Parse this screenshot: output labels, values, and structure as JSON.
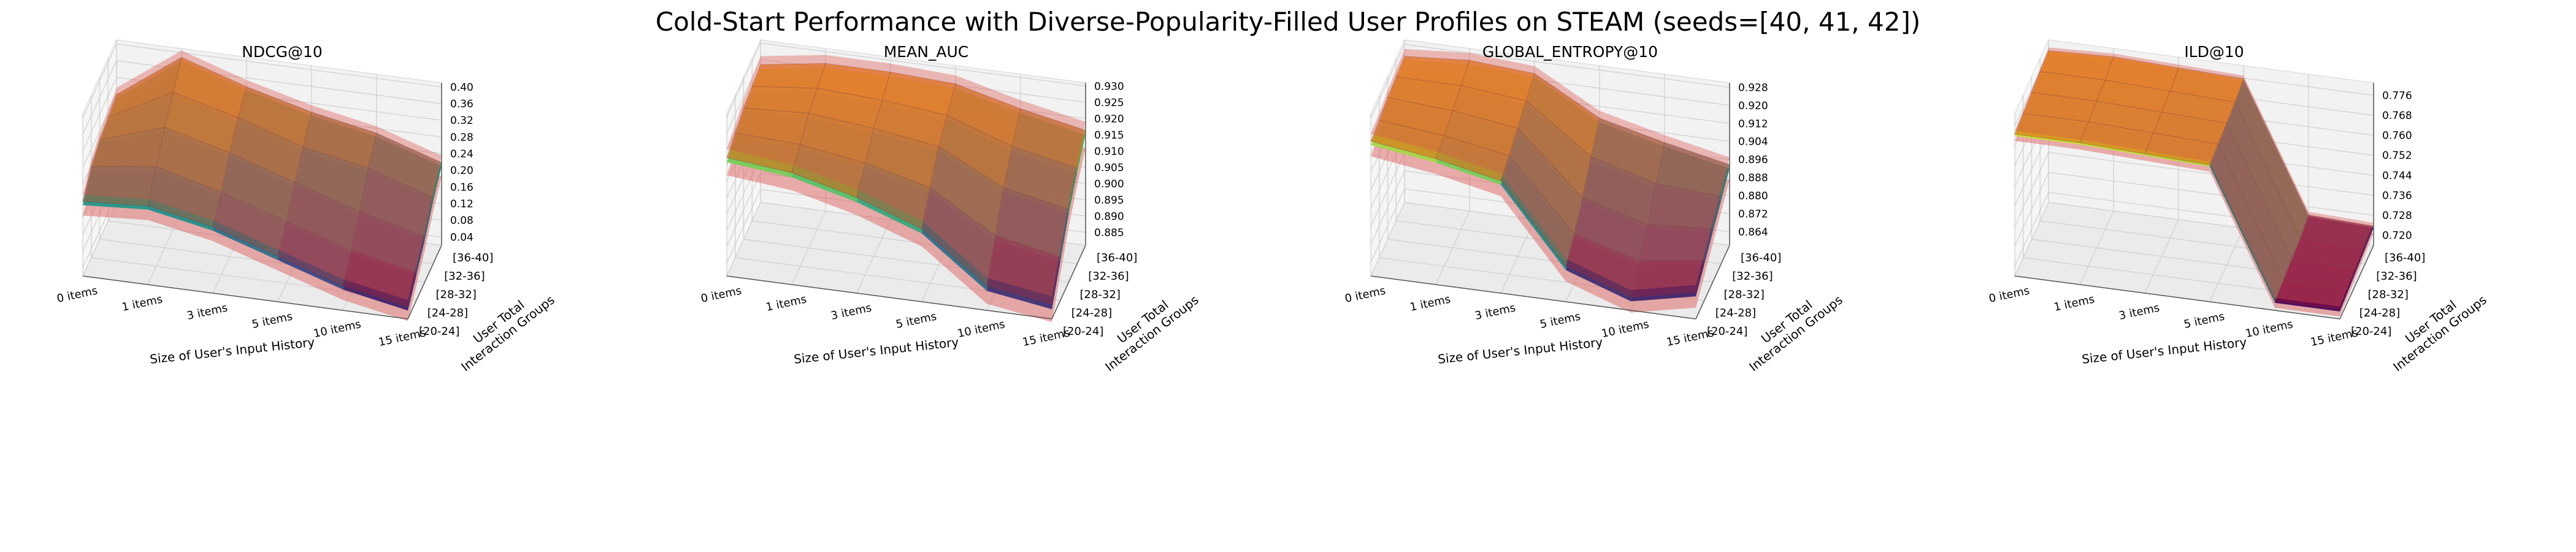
{
  "figure": {
    "title": "Cold-Start Performance with Diverse-Popularity-Filled User Profiles on STEAM (seeds=[40, 41, 42])"
  },
  "chart_data": [
    {
      "type": "surface3d",
      "title": "NDCG@10",
      "xlabel": "Size of User's Input History",
      "ylabel": "User Total Interaction Groups",
      "x_categories": [
        "0 items",
        "1 items",
        "3 items",
        "5 items",
        "10 items",
        "15 items"
      ],
      "y_categories": [
        "[20-24]",
        "[24-28]",
        "[28-32]",
        "[32-36]",
        "[36-40]"
      ],
      "z_ticks": [
        "0.04",
        "0.08",
        "0.12",
        "0.16",
        "0.20",
        "0.24",
        "0.28",
        "0.32",
        "0.36",
        "0.40"
      ],
      "zlim": [
        0.02,
        0.41
      ],
      "z_grid": [
        [
          0.19,
          0.2,
          0.17,
          0.12,
          0.07,
          0.04
        ],
        [
          0.23,
          0.25,
          0.21,
          0.16,
          0.11,
          0.08
        ],
        [
          0.25,
          0.3,
          0.26,
          0.21,
          0.16,
          0.12
        ],
        [
          0.26,
          0.34,
          0.3,
          0.25,
          0.22,
          0.17
        ],
        [
          0.27,
          0.38,
          0.33,
          0.29,
          0.26,
          0.21
        ]
      ],
      "ci_half_width": 0.025
    },
    {
      "type": "surface3d",
      "title": "MEAN_AUC",
      "xlabel": "Size of User's Input History",
      "ylabel": "User Total Interaction Groups",
      "x_categories": [
        "0 items",
        "1 items",
        "3 items",
        "5 items",
        "10 items",
        "15 items"
      ],
      "y_categories": [
        "[20-24]",
        "[24-28]",
        "[28-32]",
        "[32-36]",
        "[36-40]"
      ],
      "z_ticks": [
        "0.885",
        "0.890",
        "0.895",
        "0.900",
        "0.905",
        "0.910",
        "0.915",
        "0.920",
        "0.925",
        "0.930"
      ],
      "zlim": [
        0.881,
        0.931
      ],
      "z_grid": [
        [
          0.916,
          0.914,
          0.909,
          0.902,
          0.887,
          0.884
        ],
        [
          0.918,
          0.917,
          0.914,
          0.909,
          0.897,
          0.893
        ],
        [
          0.92,
          0.921,
          0.919,
          0.916,
          0.906,
          0.902
        ],
        [
          0.921,
          0.923,
          0.922,
          0.92,
          0.913,
          0.909
        ],
        [
          0.922,
          0.925,
          0.925,
          0.924,
          0.919,
          0.915
        ]
      ],
      "ci_half_width": 0.004
    },
    {
      "type": "surface3d",
      "title": "GLOBAL_ENTROPY@10",
      "xlabel": "Size of User's Input History",
      "ylabel": "User Total Interaction Groups",
      "x_categories": [
        "0 items",
        "1 items",
        "3 items",
        "5 items",
        "10 items",
        "15 items"
      ],
      "y_categories": [
        "[20-24]",
        "[24-28]",
        "[28-32]",
        "[32-36]",
        "[36-40]"
      ],
      "z_ticks": [
        "0.864",
        "0.872",
        "0.880",
        "0.888",
        "0.896",
        "0.904",
        "0.912",
        "0.920",
        "0.928"
      ],
      "zlim": [
        0.858,
        0.93
      ],
      "z_grid": [
        [
          0.916,
          0.912,
          0.906,
          0.872,
          0.862,
          0.868
        ],
        [
          0.917,
          0.914,
          0.909,
          0.878,
          0.87,
          0.874
        ],
        [
          0.919,
          0.917,
          0.913,
          0.886,
          0.878,
          0.88
        ],
        [
          0.92,
          0.92,
          0.917,
          0.896,
          0.888,
          0.886
        ],
        [
          0.921,
          0.923,
          0.921,
          0.905,
          0.898,
          0.892
        ]
      ],
      "ci_half_width": 0.005
    },
    {
      "type": "surface3d",
      "title": "ILD@10",
      "xlabel": "Size of User's Input History",
      "ylabel": "User Total Interaction Groups",
      "x_categories": [
        "0 items",
        "1 items",
        "3 items",
        "5 items",
        "10 items",
        "15 items"
      ],
      "y_categories": [
        "[20-24]",
        "[24-28]",
        "[28-32]",
        "[32-36]",
        "[36-40]"
      ],
      "z_ticks": [
        "0.720",
        "0.728",
        "0.736",
        "0.744",
        "0.752",
        "0.760",
        "0.768",
        "0.776"
      ],
      "zlim": [
        0.716,
        0.781
      ],
      "z_grid": [
        [
          0.772,
          0.772,
          0.771,
          0.77,
          0.719,
          0.719
        ],
        [
          0.773,
          0.773,
          0.772,
          0.771,
          0.72,
          0.72
        ],
        [
          0.774,
          0.774,
          0.773,
          0.772,
          0.721,
          0.721
        ],
        [
          0.775,
          0.775,
          0.774,
          0.773,
          0.722,
          0.722
        ],
        [
          0.776,
          0.777,
          0.776,
          0.775,
          0.724,
          0.723
        ]
      ],
      "ci_half_width": 0.002
    }
  ]
}
